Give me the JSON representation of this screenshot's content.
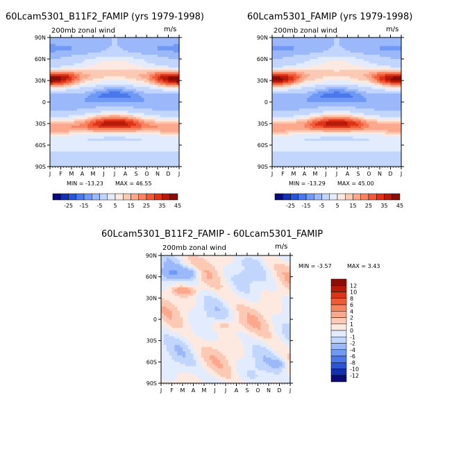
{
  "chart_data": [
    {
      "type": "heatmap",
      "title": "60Lcam5301_B11F2_FAMIP (yrs 1979-1998)",
      "subtitle": "200mb zonal wind",
      "units": "m/s",
      "min_label": "MIN = -13.23",
      "max_label": "MAX =  46.55",
      "x_ticks": [
        "J",
        "F",
        "M",
        "A",
        "M",
        "J",
        "J",
        "A",
        "S",
        "O",
        "N",
        "D",
        "J"
      ],
      "y_ticks": [
        "90N",
        "60N",
        "30N",
        "0",
        "30S",
        "60S",
        "90S"
      ],
      "ylim": [
        -90,
        90
      ],
      "colorbar_labels": [
        "-25",
        "-15",
        "-5",
        "5",
        "15",
        "25",
        "35",
        "45"
      ],
      "colorbar_levels": [
        -30,
        -25,
        -20,
        -15,
        -10,
        -5,
        0,
        5,
        10,
        15,
        20,
        25,
        30,
        35,
        40,
        45
      ],
      "features": [
        {
          "name": "NH jet",
          "lat": 30,
          "peak_value": 45
        },
        {
          "name": "SH jet",
          "lat": -30,
          "peak_value": 40
        },
        {
          "name": "equatorial easterlies",
          "lat": 5,
          "peak_value": -13
        }
      ]
    },
    {
      "type": "heatmap",
      "title": "60Lcam5301_FAMIP (yrs 1979-1998)",
      "subtitle": "200mb zonal wind",
      "units": "m/s",
      "min_label": "MIN = -13.29",
      "max_label": "MAX =  45.00",
      "x_ticks": [
        "J",
        "F",
        "M",
        "A",
        "M",
        "J",
        "J",
        "A",
        "S",
        "O",
        "N",
        "D",
        "J"
      ],
      "y_ticks": [
        "90N",
        "60N",
        "30N",
        "0",
        "30S",
        "60S",
        "90S"
      ],
      "ylim": [
        -90,
        90
      ],
      "colorbar_labels": [
        "-25",
        "-15",
        "-5",
        "5",
        "15",
        "25",
        "35",
        "45"
      ],
      "colorbar_levels": [
        -30,
        -25,
        -20,
        -15,
        -10,
        -5,
        0,
        5,
        10,
        15,
        20,
        25,
        30,
        35,
        40,
        45
      ],
      "features": [
        {
          "name": "NH jet",
          "lat": 30,
          "peak_value": 45
        },
        {
          "name": "SH jet",
          "lat": -30,
          "peak_value": 40
        },
        {
          "name": "equatorial easterlies",
          "lat": 5,
          "peak_value": -13
        }
      ]
    },
    {
      "type": "heatmap",
      "title": "60Lcam5301_B11F2_FAMIP - 60Lcam5301_FAMIP",
      "subtitle": "200mb zonal wind",
      "units": "m/s",
      "min_label": "MIN =  -3.57",
      "max_label": "MAX =   3.43",
      "x_ticks": [
        "J",
        "F",
        "M",
        "A",
        "M",
        "J",
        "J",
        "A",
        "S",
        "O",
        "N",
        "D",
        "J"
      ],
      "y_ticks": [
        "90N",
        "60N",
        "30N",
        "0",
        "30S",
        "60S",
        "90S"
      ],
      "ylim": [
        -90,
        90
      ],
      "colorbar_labels": [
        "12",
        "10",
        "8",
        "6",
        "4",
        "2",
        "1",
        "0",
        "-1",
        "-2",
        "-4",
        "-6",
        "-8",
        "-10",
        "-12"
      ],
      "colorbar_levels": [
        -12,
        -10,
        -8,
        -6,
        -4,
        -2,
        -1,
        0,
        1,
        2,
        4,
        6,
        8,
        10,
        12
      ]
    }
  ],
  "colors": {
    "div": [
      "#0a0a78",
      "#1530b0",
      "#2a56d6",
      "#4a78ea",
      "#7098f5",
      "#9ab8fa",
      "#c2d6fd",
      "#e2ecfe",
      "#fde9e0",
      "#fcc9b4",
      "#fba88c",
      "#f78460",
      "#f05a38",
      "#dd3418",
      "#b81a0a",
      "#8c0c06"
    ],
    "diff_bar": [
      "#8c0c06",
      "#b81a0a",
      "#dd3418",
      "#f05a38",
      "#f78460",
      "#fba88c",
      "#fcc9b4",
      "#fde9e0",
      "#e2ecfe",
      "#c2d6fd",
      "#9ab8fa",
      "#7098f5",
      "#4a78ea",
      "#2a56d6",
      "#1530b0",
      "#0a0a78"
    ]
  }
}
